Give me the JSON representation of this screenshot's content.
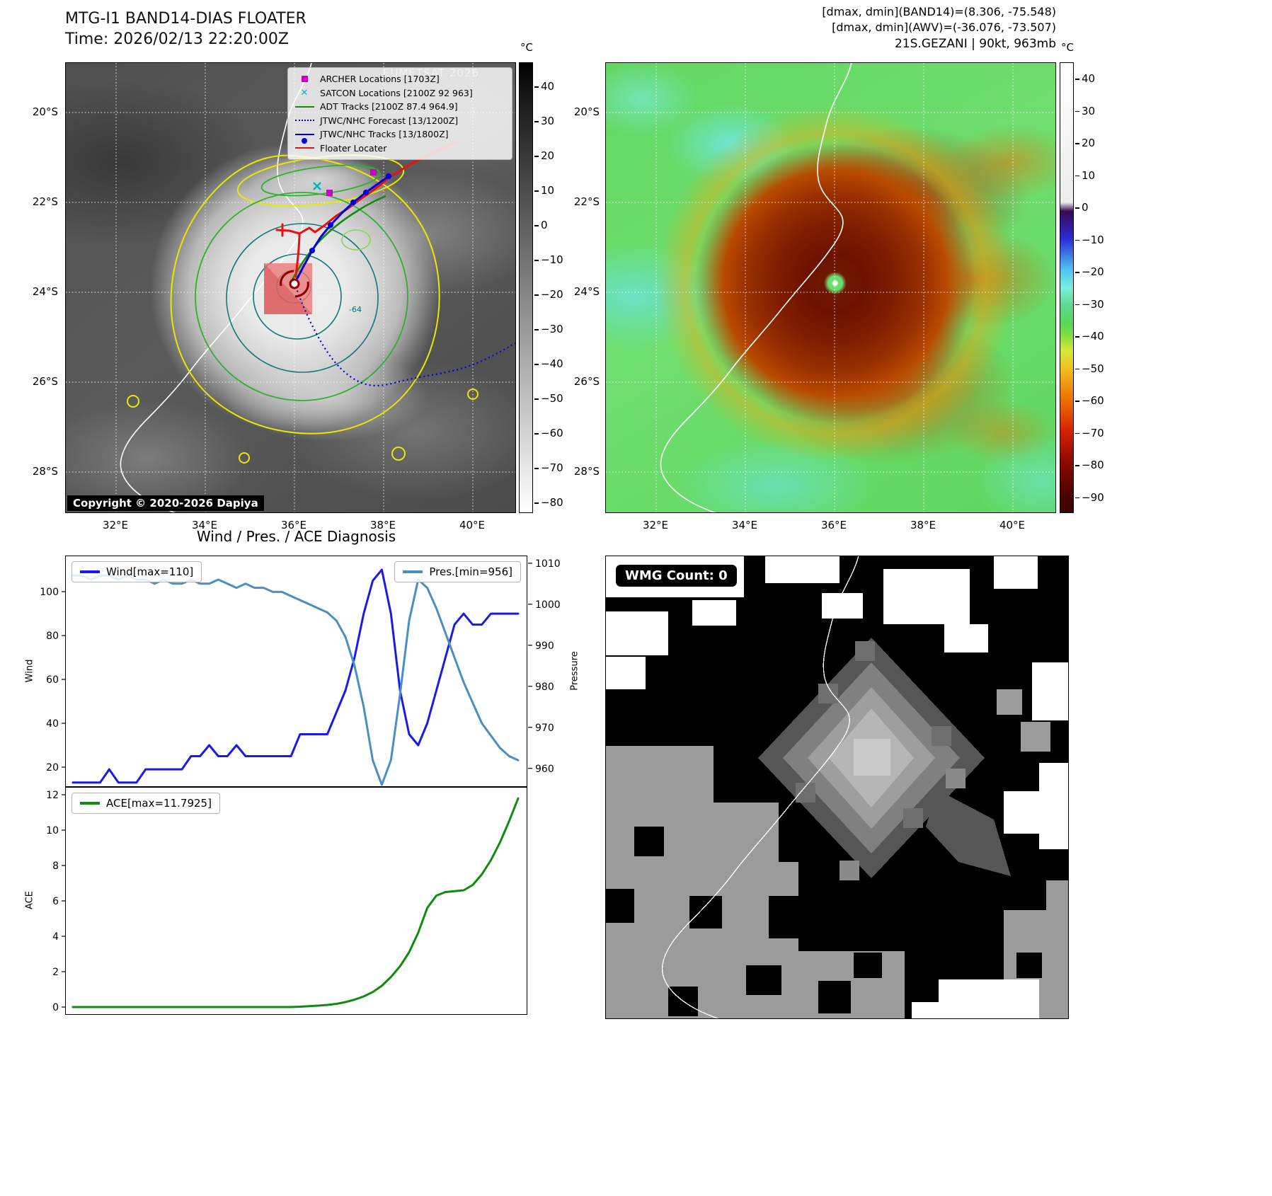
{
  "band14": {
    "title": "MTG-I1 BAND14-DIAS FLOATER",
    "time_label": "Time: 2026/02/13 22:20:00Z",
    "watermark": "EUMETSAT 2026",
    "copyright": "Copyright © 2020-2026 Dapiya",
    "contour_label": "-64",
    "legend": [
      {
        "label": "ARCHER Locations [1703Z]",
        "type": "square",
        "color": "#c800c8"
      },
      {
        "label": "SATCON Locations [2100Z 92 963]",
        "type": "x",
        "color": "#00b8b8"
      },
      {
        "label": "ADT Tracks [2100Z 87.4 964.9]",
        "type": "line",
        "color": "#108a10"
      },
      {
        "label": "JTWC/NHC Forecast [13/1200Z]",
        "type": "dotted",
        "color": "#0000dd"
      },
      {
        "label": "JTWC/NHC Tracks [13/1800Z]",
        "type": "line-marker",
        "color": "#0000dd"
      },
      {
        "label": "Floater Locater",
        "type": "line",
        "color": "#e81010"
      }
    ],
    "lat_ticks": [
      "20°S",
      "22°S",
      "24°S",
      "26°S",
      "28°S"
    ],
    "lon_ticks": [
      "32°E",
      "34°E",
      "36°E",
      "38°E",
      "40°E"
    ],
    "colorbar_unit": "°C",
    "colorbar_ticks": [
      "40",
      "30",
      "20",
      "10",
      "0",
      "−10",
      "−20",
      "−30",
      "−40",
      "−50",
      "−60",
      "−70",
      "−80"
    ]
  },
  "awv": {
    "header": [
      "[dmax, dmin](BAND14)=(8.306, -75.548)",
      "[dmax, dmin](AWV)=(-36.076, -73.507)",
      "21S.GEZANI | 90kt, 963mb"
    ],
    "lat_ticks": [
      "20°S",
      "22°S",
      "24°S",
      "26°S",
      "28°S"
    ],
    "lon_ticks": [
      "32°E",
      "34°E",
      "36°E",
      "38°E",
      "40°E"
    ],
    "colorbar_unit": "°C",
    "colorbar_ticks": [
      "40",
      "30",
      "20",
      "10",
      "0",
      "−10",
      "−20",
      "−30",
      "−40",
      "−50",
      "−60",
      "−70",
      "−80",
      "−90"
    ]
  },
  "wmg": {
    "count_label": "WMG Count: 0"
  },
  "chart_data": [
    {
      "type": "line",
      "title": "Wind / Pres. / ACE Diagnosis",
      "xlabel": "",
      "left_axis": {
        "label": "Wind",
        "ticks": [
          100,
          80,
          60,
          40,
          20
        ],
        "range": [
          10.65,
          116.15
        ]
      },
      "right_axis": {
        "label": "Pressure",
        "ticks": [
          1010,
          1000,
          990,
          980,
          970,
          960
        ],
        "range": [
          955.3,
          1011.7
        ]
      },
      "series": [
        {
          "name": "Wind[max=110]",
          "axis": "left",
          "color": "#1a1ae8",
          "values": [
            13,
            13,
            13,
            13,
            19,
            13,
            13,
            13,
            19,
            19,
            19,
            19,
            19,
            25,
            25,
            30,
            25,
            25,
            30,
            25,
            25,
            25,
            25,
            25,
            25,
            35,
            35,
            35,
            35,
            45,
            55,
            70,
            90,
            105,
            110,
            90,
            55,
            35,
            30,
            40,
            55,
            70,
            85,
            90,
            85,
            85,
            90,
            90,
            90,
            90
          ]
        },
        {
          "name": "Pres.[min=956]",
          "axis": "right",
          "color": "#4a8fc0",
          "values": [
            1007,
            1007,
            1006,
            1007,
            1007,
            1006,
            1007,
            1006,
            1006,
            1005,
            1006,
            1005,
            1005,
            1006,
            1005,
            1005,
            1006,
            1005,
            1004,
            1005,
            1004,
            1004,
            1003,
            1003,
            1002,
            1001,
            1000,
            999,
            998,
            996,
            992,
            985,
            975,
            962,
            956,
            962,
            978,
            996,
            1006,
            1004,
            999,
            993,
            987,
            981,
            976,
            971,
            968,
            965,
            963,
            962
          ]
        }
      ]
    },
    {
      "type": "line",
      "title": "",
      "xlabel": "",
      "left_axis": {
        "label": "ACE",
        "ticks": [
          12,
          10,
          8,
          6,
          4,
          2,
          0
        ],
        "range": [
          -0.48,
          12.4
        ]
      },
      "series": [
        {
          "name": "ACE[max=11.7925]",
          "axis": "left",
          "color": "#108a10",
          "values": [
            0,
            0,
            0,
            0,
            0,
            0,
            0,
            0,
            0,
            0,
            0,
            0,
            0,
            0,
            0,
            0,
            0,
            0,
            0,
            0,
            0,
            0,
            0,
            0,
            0,
            0.02,
            0.05,
            0.08,
            0.12,
            0.18,
            0.28,
            0.42,
            0.6,
            0.85,
            1.2,
            1.7,
            2.3,
            3.1,
            4.2,
            5.6,
            6.3,
            6.5,
            6.55,
            6.6,
            6.9,
            7.5,
            8.3,
            9.3,
            10.5,
            11.7925
          ]
        }
      ]
    }
  ]
}
